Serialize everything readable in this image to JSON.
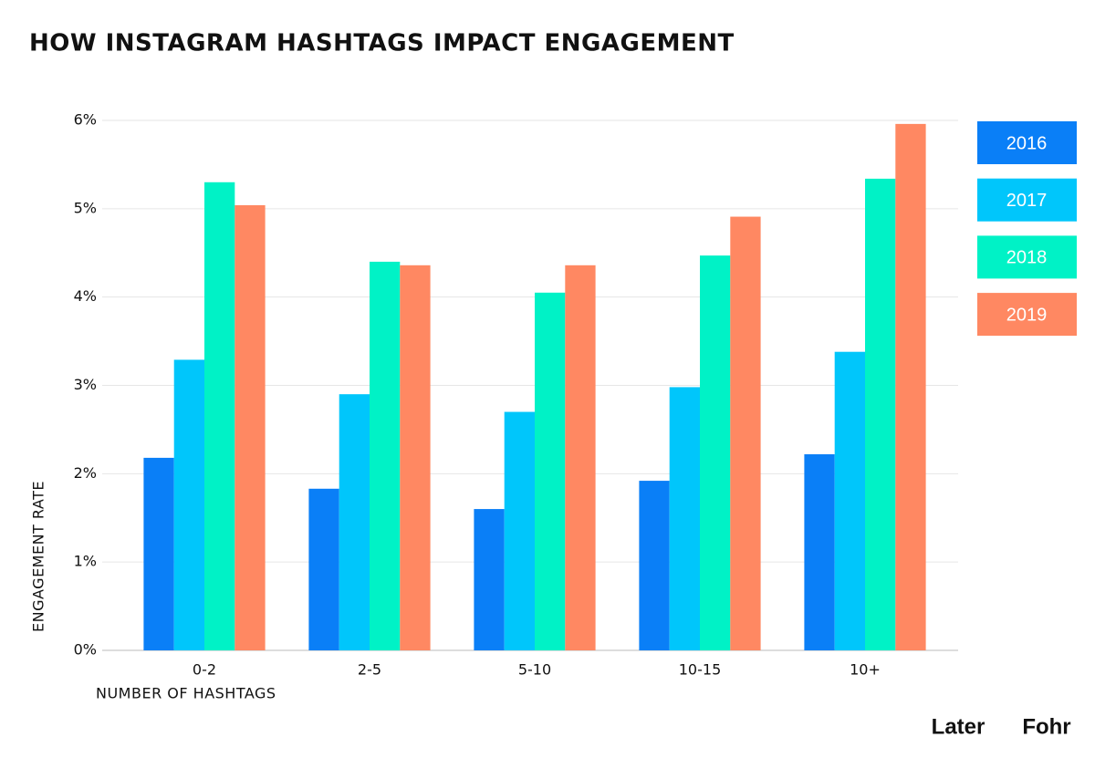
{
  "chart_data": {
    "type": "bar",
    "title": "HOW INSTAGRAM HASHTAGS IMPACT ENGAGEMENT",
    "x_label": "NUMBER OF HASHTAGS",
    "y_label": "ENGAGEMENT RATE",
    "categories": [
      "0-2",
      "2-5",
      "5-10",
      "10-15",
      "10+"
    ],
    "series": [
      {
        "name": "2016",
        "color": "#0a7ff7",
        "values": [
          2.18,
          1.83,
          1.6,
          1.92,
          2.22
        ]
      },
      {
        "name": "2017",
        "color": "#00c6fb",
        "values": [
          3.29,
          2.9,
          2.7,
          2.98,
          3.38
        ]
      },
      {
        "name": "2018",
        "color": "#00f2c6",
        "values": [
          5.3,
          4.4,
          4.05,
          4.47,
          5.34
        ]
      },
      {
        "name": "2019",
        "color": "#ff8862",
        "values": [
          5.04,
          4.36,
          4.36,
          4.91,
          5.96
        ]
      }
    ],
    "ylim": [
      0,
      6
    ],
    "yticks": [
      {
        "value": 0,
        "label": "0%"
      },
      {
        "value": 1,
        "label": "1%"
      },
      {
        "value": 2,
        "label": "2%"
      },
      {
        "value": 3,
        "label": "3%"
      },
      {
        "value": 4,
        "label": "4%"
      },
      {
        "value": 5,
        "label": "5%"
      },
      {
        "value": 6,
        "label": "6%"
      }
    ],
    "grid": true
  },
  "branding": [
    "Later",
    "Fohr"
  ]
}
